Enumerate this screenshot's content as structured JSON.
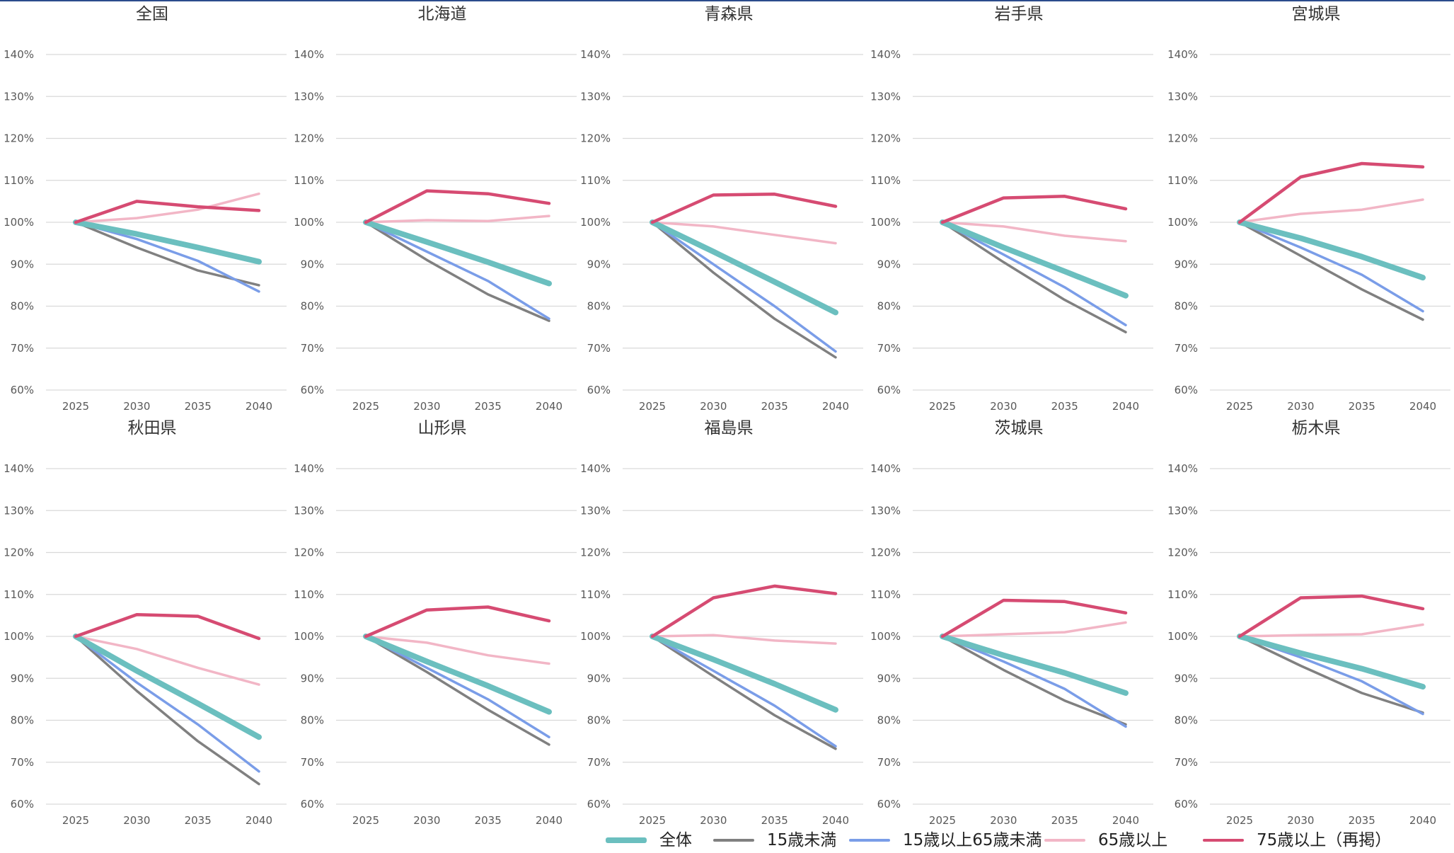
{
  "colors": {
    "total": "#6bbfbf",
    "under15": "#808080",
    "working": "#7a9de8",
    "over65": "#f2b6c6",
    "over75": "#d64b72",
    "grid": "#d9d9d9",
    "tick": "#595959",
    "title": "#333333"
  },
  "legend": [
    {
      "key": "total",
      "label": "全体"
    },
    {
      "key": "under15",
      "label": "15歳未満"
    },
    {
      "key": "working",
      "label": "15歳以上65歳未満"
    },
    {
      "key": "over65",
      "label": "65歳以上"
    },
    {
      "key": "over75",
      "label": "75歳以上（再掲）"
    }
  ],
  "chart_data": [
    {
      "type": "line",
      "title": "全国",
      "categories": [
        "2025",
        "2030",
        "2035",
        "2040"
      ],
      "ylim": [
        60,
        140
      ],
      "yticks": [
        "60%",
        "70%",
        "80%",
        "90%",
        "100%",
        "110%",
        "120%",
        "130%",
        "140%"
      ],
      "series": [
        {
          "name": "全体",
          "key": "total",
          "values": [
            100,
            97.2,
            94.0,
            90.6
          ]
        },
        {
          "name": "15歳未満",
          "key": "under15",
          "values": [
            100,
            94.0,
            88.5,
            85.0
          ]
        },
        {
          "name": "15歳以上65歳未満",
          "key": "working",
          "values": [
            100,
            96.0,
            90.8,
            83.5
          ]
        },
        {
          "name": "65歳以上",
          "key": "over65",
          "values": [
            100,
            101.0,
            103.0,
            106.8
          ]
        },
        {
          "name": "75歳以上（再掲）",
          "key": "over75",
          "values": [
            100,
            105.0,
            103.7,
            102.8
          ]
        }
      ]
    },
    {
      "type": "line",
      "title": "北海道",
      "categories": [
        "2025",
        "2030",
        "2035",
        "2040"
      ],
      "ylim": [
        60,
        140
      ],
      "yticks": [
        "60%",
        "70%",
        "80%",
        "90%",
        "100%",
        "110%",
        "120%",
        "130%",
        "140%"
      ],
      "series": [
        {
          "name": "全体",
          "key": "total",
          "values": [
            100,
            95.3,
            90.5,
            85.4
          ]
        },
        {
          "name": "15歳未満",
          "key": "under15",
          "values": [
            100,
            91.0,
            82.8,
            76.5
          ]
        },
        {
          "name": "15歳以上65歳未満",
          "key": "working",
          "values": [
            100,
            93.0,
            86.0,
            77.0
          ]
        },
        {
          "name": "65歳以上",
          "key": "over65",
          "values": [
            100,
            100.5,
            100.3,
            101.5
          ]
        },
        {
          "name": "75歳以上（再掲）",
          "key": "over75",
          "values": [
            100,
            107.5,
            106.8,
            104.5
          ]
        }
      ]
    },
    {
      "type": "line",
      "title": "青森県",
      "categories": [
        "2025",
        "2030",
        "2035",
        "2040"
      ],
      "ylim": [
        60,
        140
      ],
      "yticks": [
        "60%",
        "70%",
        "80%",
        "90%",
        "100%",
        "110%",
        "120%",
        "130%",
        "140%"
      ],
      "series": [
        {
          "name": "全体",
          "key": "total",
          "values": [
            100,
            93.0,
            85.8,
            78.5
          ]
        },
        {
          "name": "15歳未満",
          "key": "under15",
          "values": [
            100,
            88.0,
            77.0,
            67.8
          ]
        },
        {
          "name": "15歳以上65歳未満",
          "key": "working",
          "values": [
            100,
            90.0,
            80.0,
            69.2
          ]
        },
        {
          "name": "65歳以上",
          "key": "over65",
          "values": [
            100,
            99.0,
            97.0,
            95.0
          ]
        },
        {
          "name": "75歳以上（再掲）",
          "key": "over75",
          "values": [
            100,
            106.5,
            106.7,
            103.8
          ]
        }
      ]
    },
    {
      "type": "line",
      "title": "岩手県",
      "categories": [
        "2025",
        "2030",
        "2035",
        "2040"
      ],
      "ylim": [
        60,
        140
      ],
      "yticks": [
        "60%",
        "70%",
        "80%",
        "90%",
        "100%",
        "110%",
        "120%",
        "130%",
        "140%"
      ],
      "series": [
        {
          "name": "全体",
          "key": "total",
          "values": [
            100,
            94.0,
            88.3,
            82.5
          ]
        },
        {
          "name": "15歳未満",
          "key": "under15",
          "values": [
            100,
            90.5,
            81.5,
            73.8
          ]
        },
        {
          "name": "15歳以上65歳未満",
          "key": "working",
          "values": [
            100,
            92.3,
            84.5,
            75.5
          ]
        },
        {
          "name": "65歳以上",
          "key": "over65",
          "values": [
            100,
            99.0,
            96.8,
            95.5
          ]
        },
        {
          "name": "75歳以上（再掲）",
          "key": "over75",
          "values": [
            100,
            105.8,
            106.2,
            103.2
          ]
        }
      ]
    },
    {
      "type": "line",
      "title": "宮城県",
      "categories": [
        "2025",
        "2030",
        "2035",
        "2040"
      ],
      "ylim": [
        60,
        140
      ],
      "yticks": [
        "60%",
        "70%",
        "80%",
        "90%",
        "100%",
        "110%",
        "120%",
        "130%",
        "140%"
      ],
      "series": [
        {
          "name": "全体",
          "key": "total",
          "values": [
            100,
            96.2,
            91.8,
            86.8
          ]
        },
        {
          "name": "15歳未満",
          "key": "under15",
          "values": [
            100,
            92.0,
            84.0,
            76.8
          ]
        },
        {
          "name": "15歳以上65歳未満",
          "key": "working",
          "values": [
            100,
            94.0,
            87.5,
            78.8
          ]
        },
        {
          "name": "65歳以上",
          "key": "over65",
          "values": [
            100,
            102.0,
            103.0,
            105.4
          ]
        },
        {
          "name": "75歳以上（再掲）",
          "key": "over75",
          "values": [
            100,
            110.8,
            114.0,
            113.2
          ]
        }
      ]
    },
    {
      "type": "line",
      "title": "秋田県",
      "categories": [
        "2025",
        "2030",
        "2035",
        "2040"
      ],
      "ylim": [
        60,
        140
      ],
      "yticks": [
        "60%",
        "70%",
        "80%",
        "90%",
        "100%",
        "110%",
        "120%",
        "130%",
        "140%"
      ],
      "series": [
        {
          "name": "全体",
          "key": "total",
          "values": [
            100,
            91.8,
            84.0,
            76.0
          ]
        },
        {
          "name": "15歳未満",
          "key": "under15",
          "values": [
            100,
            87.0,
            75.0,
            64.8
          ]
        },
        {
          "name": "15歳以上65歳未満",
          "key": "working",
          "values": [
            100,
            89.0,
            79.0,
            67.8
          ]
        },
        {
          "name": "65歳以上",
          "key": "over65",
          "values": [
            100,
            97.0,
            92.5,
            88.5
          ]
        },
        {
          "name": "75歳以上（再掲）",
          "key": "over75",
          "values": [
            100,
            105.2,
            104.8,
            99.5
          ]
        }
      ]
    },
    {
      "type": "line",
      "title": "山形県",
      "categories": [
        "2025",
        "2030",
        "2035",
        "2040"
      ],
      "ylim": [
        60,
        140
      ],
      "yticks": [
        "60%",
        "70%",
        "80%",
        "90%",
        "100%",
        "110%",
        "120%",
        "130%",
        "140%"
      ],
      "series": [
        {
          "name": "全体",
          "key": "total",
          "values": [
            100,
            94.0,
            88.2,
            82.0
          ]
        },
        {
          "name": "15歳未満",
          "key": "under15",
          "values": [
            100,
            91.5,
            82.5,
            74.2
          ]
        },
        {
          "name": "15歳以上65歳未満",
          "key": "working",
          "values": [
            100,
            92.5,
            85.0,
            76.0
          ]
        },
        {
          "name": "65歳以上",
          "key": "over65",
          "values": [
            100,
            98.5,
            95.5,
            93.5
          ]
        },
        {
          "name": "75歳以上（再掲）",
          "key": "over75",
          "values": [
            100,
            106.3,
            107.0,
            103.7
          ]
        }
      ]
    },
    {
      "type": "line",
      "title": "福島県",
      "categories": [
        "2025",
        "2030",
        "2035",
        "2040"
      ],
      "ylim": [
        60,
        140
      ],
      "yticks": [
        "60%",
        "70%",
        "80%",
        "90%",
        "100%",
        "110%",
        "120%",
        "130%",
        "140%"
      ],
      "series": [
        {
          "name": "全体",
          "key": "total",
          "values": [
            100,
            94.5,
            88.7,
            82.5
          ]
        },
        {
          "name": "15歳未満",
          "key": "under15",
          "values": [
            100,
            90.5,
            81.2,
            73.2
          ]
        },
        {
          "name": "15歳以上65歳未満",
          "key": "working",
          "values": [
            100,
            91.8,
            83.5,
            73.8
          ]
        },
        {
          "name": "65歳以上",
          "key": "over65",
          "values": [
            100,
            100.3,
            99.0,
            98.3
          ]
        },
        {
          "name": "75歳以上（再掲）",
          "key": "over75",
          "values": [
            100,
            109.2,
            112.0,
            110.2
          ]
        }
      ]
    },
    {
      "type": "line",
      "title": "茨城県",
      "categories": [
        "2025",
        "2030",
        "2035",
        "2040"
      ],
      "ylim": [
        60,
        140
      ],
      "yticks": [
        "60%",
        "70%",
        "80%",
        "90%",
        "100%",
        "110%",
        "120%",
        "130%",
        "140%"
      ],
      "series": [
        {
          "name": "全体",
          "key": "total",
          "values": [
            100,
            95.5,
            91.3,
            86.5
          ]
        },
        {
          "name": "15歳未満",
          "key": "under15",
          "values": [
            100,
            92.0,
            84.7,
            79.0
          ]
        },
        {
          "name": "15歳以上65歳未満",
          "key": "working",
          "values": [
            100,
            94.0,
            87.5,
            78.5
          ]
        },
        {
          "name": "65歳以上",
          "key": "over65",
          "values": [
            100,
            100.5,
            101.0,
            103.3
          ]
        },
        {
          "name": "75歳以上（再掲）",
          "key": "over75",
          "values": [
            100,
            108.6,
            108.3,
            105.6
          ]
        }
      ]
    },
    {
      "type": "line",
      "title": "栃木県",
      "categories": [
        "2025",
        "2030",
        "2035",
        "2040"
      ],
      "ylim": [
        60,
        140
      ],
      "yticks": [
        "60%",
        "70%",
        "80%",
        "90%",
        "100%",
        "110%",
        "120%",
        "130%",
        "140%"
      ],
      "series": [
        {
          "name": "全体",
          "key": "total",
          "values": [
            100,
            96.0,
            92.3,
            88.0
          ]
        },
        {
          "name": "15歳未満",
          "key": "under15",
          "values": [
            100,
            93.0,
            86.5,
            81.8
          ]
        },
        {
          "name": "15歳以上65歳未満",
          "key": "working",
          "values": [
            100,
            95.0,
            89.3,
            81.5
          ]
        },
        {
          "name": "65歳以上",
          "key": "over65",
          "values": [
            100,
            100.3,
            100.5,
            102.8
          ]
        },
        {
          "name": "75歳以上（再掲）",
          "key": "over75",
          "values": [
            100,
            109.2,
            109.6,
            106.6
          ]
        }
      ]
    }
  ]
}
